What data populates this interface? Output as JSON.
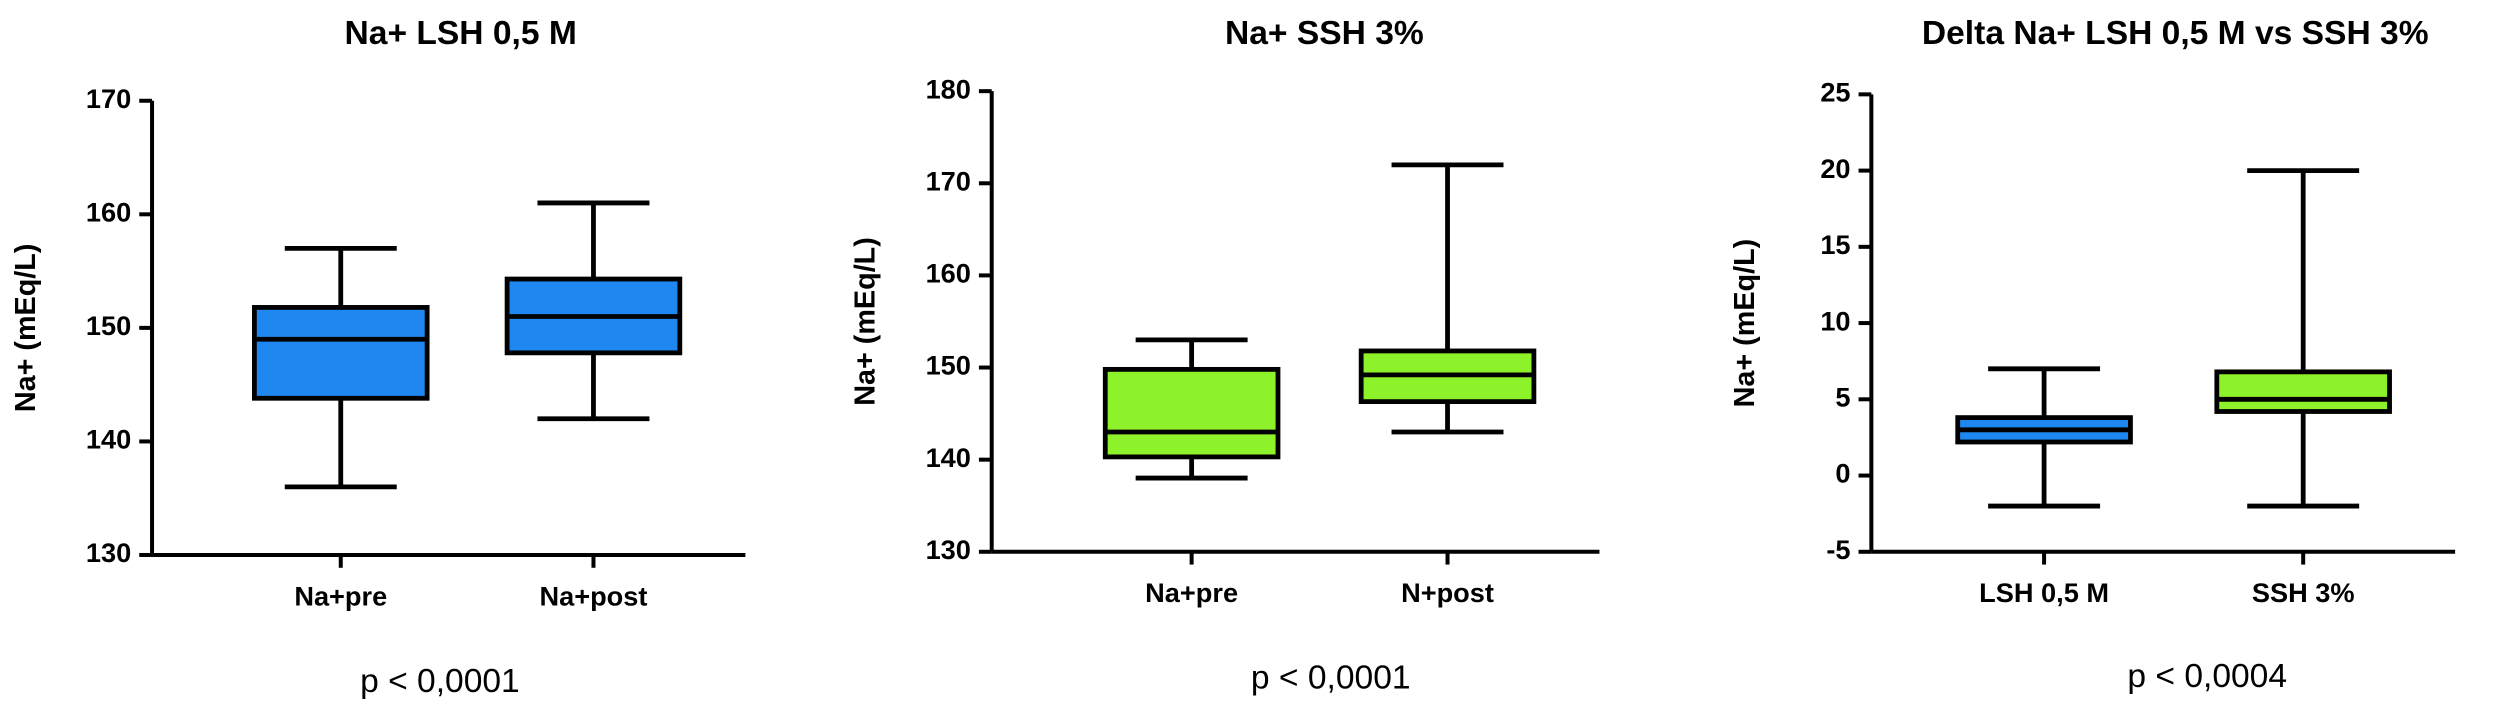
{
  "chart_data": [
    {
      "type": "box",
      "title": "Na+ LSH 0,5 M",
      "ylabel": "Na+ (mEq/L)",
      "color": "#1e88f0",
      "categories": [
        "Na+pre",
        "Na+post"
      ],
      "boxes": [
        {
          "min": 136,
          "q1": 143.8,
          "median": 149,
          "q3": 151.8,
          "max": 157
        },
        {
          "min": 142,
          "q1": 147.8,
          "median": 151,
          "q3": 154.3,
          "max": 161
        }
      ],
      "ylim": [
        130,
        170
      ],
      "yticks": [
        130,
        140,
        150,
        160,
        170
      ],
      "annotation": "p < 0,0001"
    },
    {
      "type": "box",
      "title": "Na+ SSH 3%",
      "ylabel": "Na+ (mEq/L)",
      "color": "#8ef22a",
      "categories": [
        "Na+pre",
        "N+post"
      ],
      "boxes": [
        {
          "min": 138,
          "q1": 140.3,
          "median": 143,
          "q3": 149.8,
          "max": 153
        },
        {
          "min": 143,
          "q1": 146.3,
          "median": 149.2,
          "q3": 151.8,
          "max": 172
        }
      ],
      "ylim": [
        130,
        180
      ],
      "yticks": [
        130,
        140,
        150,
        160,
        170,
        180
      ],
      "annotation": "p < 0,0001"
    },
    {
      "type": "box",
      "title": "Delta Na+ LSH 0,5 M vs SSH 3%",
      "ylabel": "Na+ (mEq/L)",
      "colors": [
        "#1e88f0",
        "#8ef22a"
      ],
      "categories": [
        "LSH 0,5 M",
        "SSH 3%"
      ],
      "boxes": [
        {
          "min": -2,
          "q1": 2.2,
          "median": 3,
          "q3": 3.8,
          "max": 7
        },
        {
          "min": -2,
          "q1": 4.2,
          "median": 5,
          "q3": 6.8,
          "max": 20
        }
      ],
      "ylim": [
        -5,
        25
      ],
      "yticks": [
        -5,
        0,
        5,
        10,
        15,
        20,
        25
      ],
      "annotation": "p < 0,0004"
    }
  ]
}
